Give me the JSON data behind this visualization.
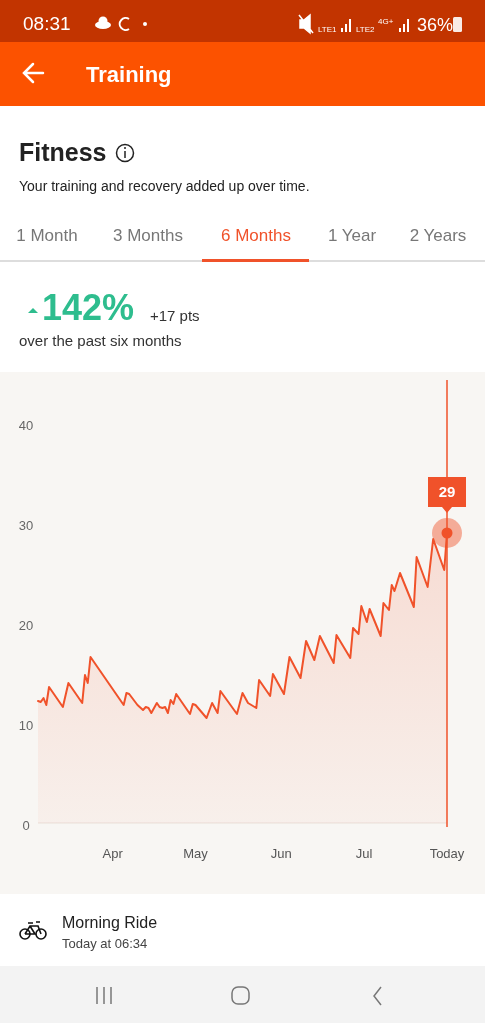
{
  "chart_data": {
    "type": "area",
    "title": "Fitness",
    "subtitle": "Your training and recovery added up over time.",
    "annotations": [
      "08:31",
      "36%",
      "LTE1",
      "LTE2",
      "4G+",
      "Training",
      "1 Month",
      "3 Months",
      "6 Months",
      "1 Year",
      "2 Years",
      "142%",
      "+17 pts",
      "over the past six months",
      "Morning Ride",
      "Today at 06:34"
    ],
    "series": [
      {
        "color": "#f0522a",
        "x": [
          "--03-05",
          "--03-06",
          "--03-07",
          "--03-08",
          "--03-09",
          "--03-14",
          "--03-16",
          "--03-21",
          "--03-22",
          "--03-23",
          "--03-24",
          "--04-05",
          "--04-06",
          "--04-07",
          "--04-10",
          "--04-12",
          "--04-13",
          "--04-14",
          "--04-15",
          "--04-17",
          "--04-18",
          "--04-19",
          "--04-20",
          "--04-21",
          "--04-22",
          "--04-23",
          "--04-24",
          "--04-29",
          "--04-30",
          "--05-01",
          "--05-05",
          "--05-07",
          "--05-09",
          "--05-10",
          "--05-16",
          "--05-18",
          "--05-20",
          "--05-23",
          "--05-24",
          "--05-28",
          "--05-29",
          "--06-02",
          "--06-04",
          "--06-08",
          "--06-10",
          "--06-13",
          "--06-15",
          "--06-20",
          "--06-21",
          "--06-26",
          "--06-27",
          "--06-29",
          "--06-30",
          "--07-02",
          "--07-03",
          "--07-07",
          "--07-08",
          "--07-10",
          "--07-11",
          "--07-12",
          "--07-14",
          "--07-19",
          "--07-20",
          "--07-24",
          "--07-26",
          "--07-30",
          "--07-31"
        ],
        "values": [
          12.2,
          12.1,
          12.5,
          11.8,
          13.6,
          11.6,
          14.0,
          12.0,
          14.8,
          14.0,
          16.6,
          11.8,
          13.0,
          12.9,
          11.8,
          11.3,
          11.6,
          11.5,
          11.0,
          12.0,
          11.6,
          11.5,
          11.6,
          11.0,
          12.3,
          11.9,
          12.9,
          10.9,
          11.9,
          11.8,
          10.5,
          12.0,
          11.0,
          13.2,
          10.9,
          13.0,
          12.0,
          11.5,
          14.3,
          12.7,
          14.9,
          12.9,
          16.6,
          14.5,
          18.2,
          16.3,
          18.7,
          16.0,
          18.8,
          16.5,
          19.5,
          18.9,
          21.7,
          20.1,
          21.4,
          18.7,
          22.0,
          21.3,
          23.8,
          23.2,
          25.0,
          21.6,
          26.6,
          23.6,
          28.4,
          25.3,
          29.0
        ]
      },
      {
        "type": "scatter",
        "color": "#f0522a",
        "marker": "circle",
        "x": [
          "--07-31"
        ],
        "values": [
          29
        ],
        "value_labels": [
          "29"
        ]
      }
    ],
    "xlim": [
      "--03-05",
      "--07-31"
    ],
    "xticks": [
      {
        "value": "--04-01",
        "label": "Apr"
      },
      {
        "value": "--05-01",
        "label": "May"
      },
      {
        "value": "--06-01",
        "label": "Jun"
      },
      {
        "value": "--07-01",
        "label": "Jul"
      },
      {
        "value": "--07-31",
        "label": "Today"
      }
    ],
    "ylim": [
      0,
      44
    ],
    "yticks": [
      0,
      10,
      20,
      30,
      40
    ],
    "ref_lines": [
      {
        "axis": "x",
        "value": "--07-31",
        "color": "#f0522a"
      }
    ]
  }
}
